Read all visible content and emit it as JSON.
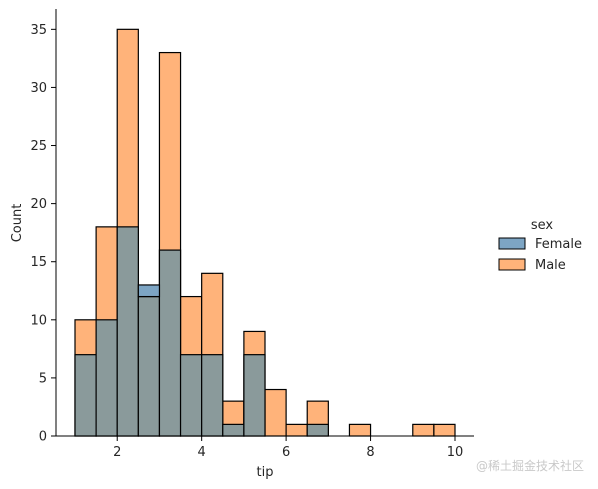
{
  "chart_data": {
    "type": "bar",
    "subtype": "overlaid-histogram",
    "xlabel": "tip",
    "ylabel": "Count",
    "xlim": [
      0.55,
      10.45
    ],
    "ylim": [
      0,
      36.75
    ],
    "xticks": [
      2,
      4,
      6,
      8,
      10
    ],
    "yticks": [
      0,
      5,
      10,
      15,
      20,
      25,
      30,
      35
    ],
    "bin_edges": [
      1.0,
      1.5,
      2.0,
      2.5,
      3.0,
      3.5,
      4.0,
      4.5,
      5.0,
      5.5,
      6.0,
      6.5,
      7.0,
      7.5,
      8.0,
      8.5,
      9.0,
      9.5,
      10.0
    ],
    "series": [
      {
        "name": "Male",
        "color": "#ff7f0e",
        "fill": "#ffb37a",
        "values": [
          10,
          18,
          35,
          12,
          33,
          12,
          14,
          3,
          9,
          4,
          1,
          3,
          0,
          1,
          0,
          0,
          1,
          1
        ]
      },
      {
        "name": "Female",
        "color": "#1f77b4",
        "fill": "#7da5c4",
        "values": [
          7,
          10,
          18,
          13,
          16,
          7,
          7,
          1,
          7,
          0,
          0,
          1,
          0,
          0,
          0,
          0,
          0,
          0
        ]
      }
    ],
    "overlap_fill": "#8a9a9b",
    "legend": {
      "title": "sex",
      "entries": [
        "Female",
        "Male"
      ],
      "position": "right"
    }
  },
  "watermark": "@稀土掘金技术社区"
}
